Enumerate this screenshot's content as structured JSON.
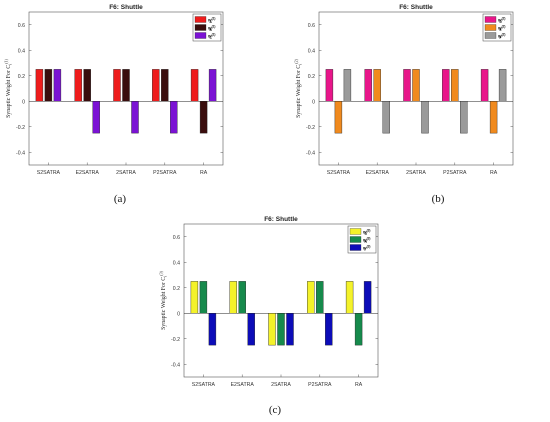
{
  "captions": [
    "(a)",
    "(b)",
    "(c)"
  ],
  "chart_data": [
    {
      "type": "bar",
      "title": "F6: Shuttle",
      "ylabel": "Synaptic Weight For C",
      "ylabel_sup": "(1)",
      "ylabel_sub": "i",
      "categories": [
        "S2SATRA",
        "E2SATRA",
        "2SATRA",
        "P2SATRA",
        "RA"
      ],
      "ylim": [
        -0.5,
        0.7
      ],
      "yticks": [
        -0.4,
        -0.2,
        0,
        0.2,
        0.4,
        0.6
      ],
      "ytick_labels": [
        "-0.4",
        "-0.2",
        "0",
        "0.2",
        "0.4",
        "0.6"
      ],
      "grid": false,
      "legend_position": "top-right",
      "series": [
        {
          "name": "w",
          "label_sup": "(1)",
          "label_sub": "A",
          "color": "#ee1c1c",
          "values": [
            0.25,
            0.25,
            0.25,
            0.25,
            0.25
          ]
        },
        {
          "name": "w",
          "label_sup": "(1)",
          "label_sub": "B",
          "color": "#3a0d0d",
          "values": [
            0.25,
            0.25,
            0.25,
            0.25,
            -0.25
          ]
        },
        {
          "name": "w",
          "label_sup": "(1)",
          "label_sub": "C",
          "color": "#7b12d4",
          "values": [
            0.25,
            -0.25,
            -0.25,
            -0.25,
            0.25
          ]
        }
      ]
    },
    {
      "type": "bar",
      "title": "F6: Shuttle",
      "ylabel": "Synaptic Weight For C",
      "ylabel_sup": "(2)",
      "ylabel_sub": "i",
      "categories": [
        "S2SATRA",
        "E2SATRA",
        "2SATRA",
        "P2SATRA",
        "RA"
      ],
      "ylim": [
        -0.5,
        0.7
      ],
      "yticks": [
        -0.4,
        -0.2,
        0,
        0.2,
        0.4,
        0.6
      ],
      "ytick_labels": [
        "-0.4",
        "-0.2",
        "0",
        "0.2",
        "0.4",
        "0.6"
      ],
      "grid": false,
      "legend_position": "top-right",
      "series": [
        {
          "name": "w",
          "label_sup": "(2)",
          "label_sub": "D",
          "color": "#e8168a",
          "values": [
            0.25,
            0.25,
            0.25,
            0.25,
            0.25
          ]
        },
        {
          "name": "w",
          "label_sup": "(2)",
          "label_sub": "E",
          "color": "#f08a1e",
          "values": [
            -0.25,
            0.25,
            0.25,
            0.25,
            -0.25
          ]
        },
        {
          "name": "w",
          "label_sup": "(2)",
          "label_sub": "F",
          "color": "#9a9a9a",
          "values": [
            0.25,
            -0.25,
            -0.25,
            -0.25,
            0.25
          ]
        }
      ]
    },
    {
      "type": "bar",
      "title": "F6: Shuttle",
      "ylabel": "Synaptic Weight For C",
      "ylabel_sup": "(3)",
      "ylabel_sub": "i",
      "categories": [
        "S2SATRA",
        "E2SATRA",
        "2SATRA",
        "P2SATRA",
        "RA"
      ],
      "ylim": [
        -0.5,
        0.7
      ],
      "yticks": [
        -0.4,
        -0.2,
        0,
        0.2,
        0.4,
        0.6
      ],
      "ytick_labels": [
        "-0.4",
        "-0.2",
        "0",
        "0.2",
        "0.4",
        "0.6"
      ],
      "grid": false,
      "legend_position": "top-right",
      "series": [
        {
          "name": "w",
          "label_sup": "(3)",
          "label_sub": "G",
          "color": "#f4f22a",
          "values": [
            0.25,
            0.25,
            -0.25,
            0.25,
            0.25
          ]
        },
        {
          "name": "w",
          "label_sup": "(3)",
          "label_sub": "H",
          "color": "#168a4c",
          "values": [
            0.25,
            0.25,
            -0.25,
            0.25,
            -0.25
          ]
        },
        {
          "name": "w",
          "label_sup": "(3)",
          "label_sub": "I",
          "color": "#0c0cb8",
          "values": [
            -0.25,
            -0.25,
            -0.25,
            -0.25,
            0.25
          ]
        }
      ]
    }
  ]
}
